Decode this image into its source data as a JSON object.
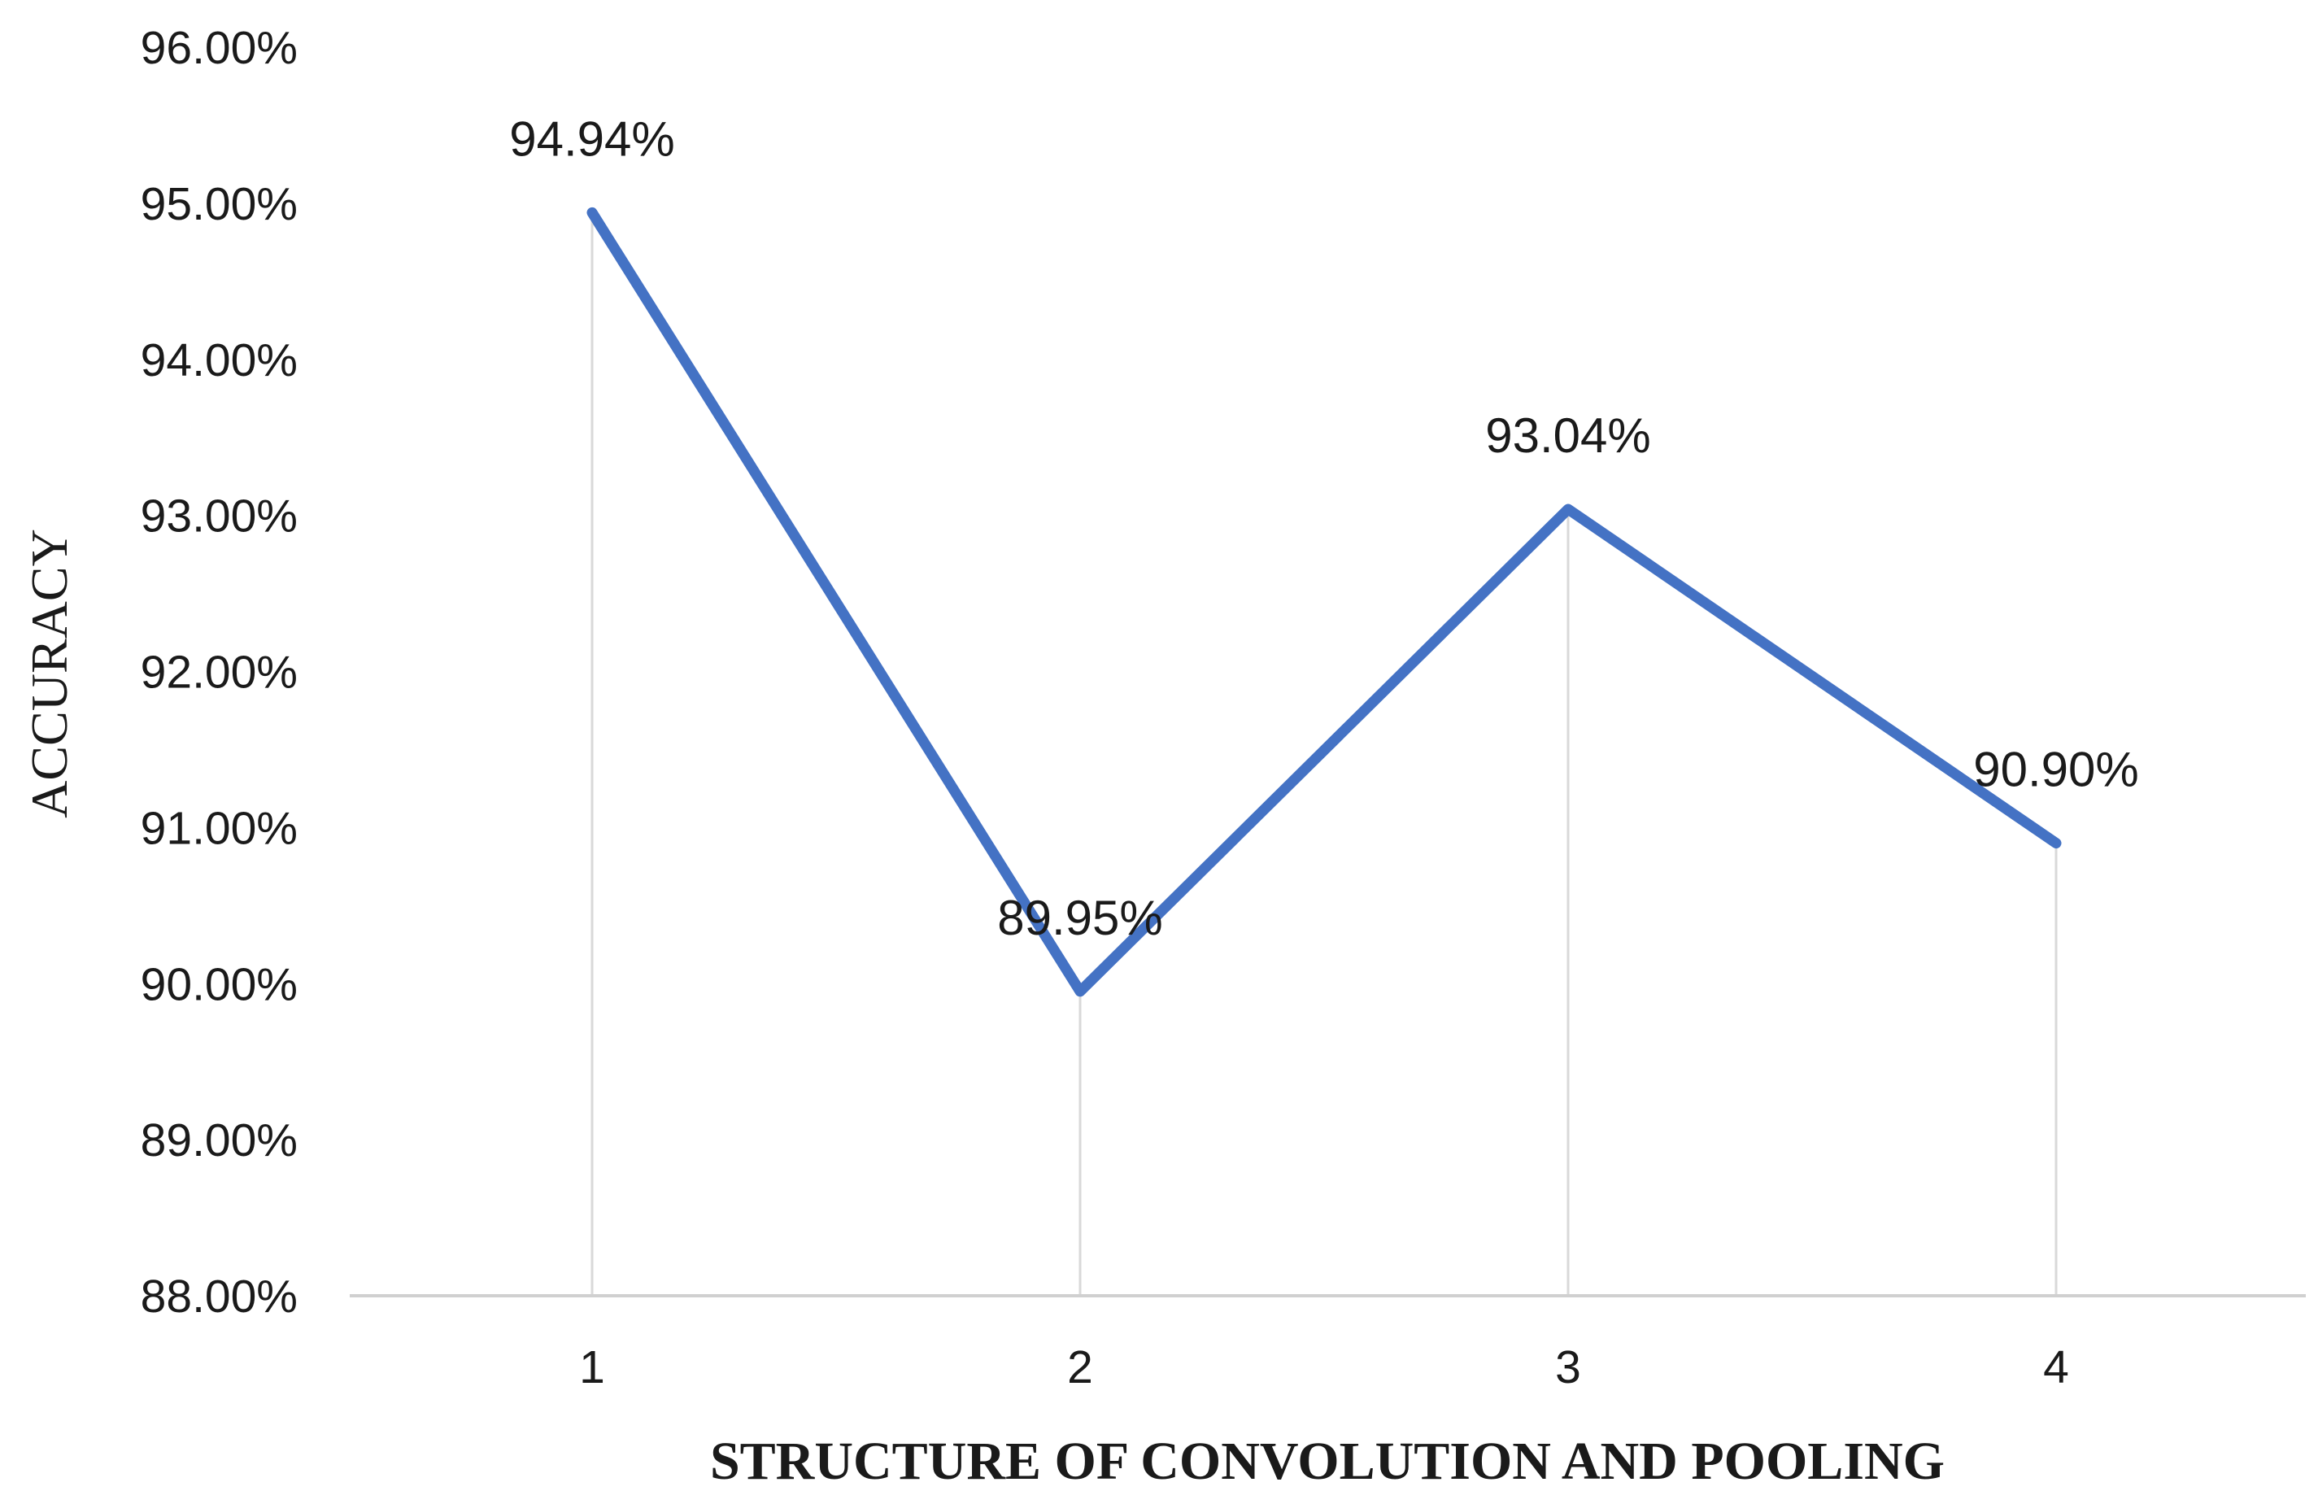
{
  "chart_data": {
    "type": "line",
    "x": [
      "1",
      "2",
      "3",
      "4"
    ],
    "series": [
      {
        "values": [
          94.94,
          89.95,
          93.04,
          90.9
        ]
      }
    ],
    "data_labels": [
      "94.94%",
      "89.95%",
      "93.04%",
      "90.90%"
    ],
    "y_tick_labels": [
      "88.00%",
      "89.00%",
      "90.00%",
      "91.00%",
      "92.00%",
      "93.00%",
      "94.00%",
      "95.00%",
      "96.00%"
    ],
    "xlabel": "STRUCTURE OF CONVOLUTION AND POOLING",
    "ylabel": "ACCURACY",
    "ylim": [
      88,
      96
    ],
    "grid": "vertical drop lines at each category",
    "legend": "none",
    "colors": {
      "line": "#4472C4",
      "gridline": "#d9d9d9",
      "axis": "#d0d0d0",
      "text": "#1a1a1a"
    }
  }
}
